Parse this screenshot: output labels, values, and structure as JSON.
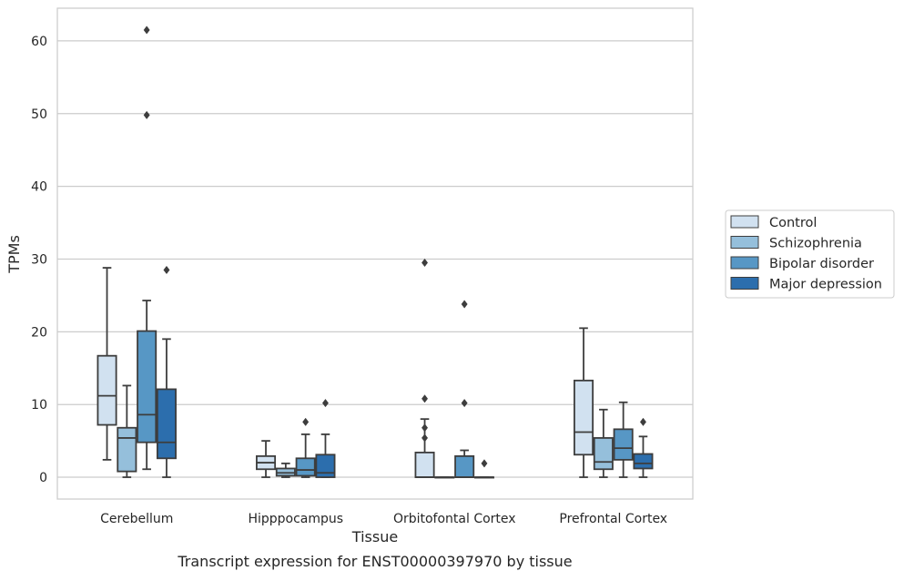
{
  "chart_data": {
    "type": "box",
    "title": "",
    "caption": "Transcript expression for ENST00000397970 by tissue",
    "xlabel": "Tissue",
    "ylabel": "TPMs",
    "ylim": [
      -3,
      64.5
    ],
    "yticks": [
      0,
      10,
      20,
      30,
      40,
      50,
      60
    ],
    "grid": "y",
    "legend_position": "right",
    "categories": [
      "Cerebellum",
      "Hipppocampus",
      "Orbitofontal Cortex",
      "Prefrontal Cortex"
    ],
    "series": [
      {
        "name": "Control",
        "color": "#d1e1f0",
        "boxes": [
          {
            "whisker_low": 2.4,
            "q1": 7.2,
            "median": 11.2,
            "q3": 16.7,
            "whisker_high": 28.8,
            "outliers": []
          },
          {
            "whisker_low": 0.0,
            "q1": 1.1,
            "median": 2.0,
            "q3": 2.9,
            "whisker_high": 5.0,
            "outliers": []
          },
          {
            "whisker_low": 0.0,
            "q1": 0.0,
            "median": 0.0,
            "q3": 3.4,
            "whisker_high": 8.0,
            "outliers": [
              29.5,
              10.8,
              6.8,
              5.4
            ]
          },
          {
            "whisker_low": 0.0,
            "q1": 3.1,
            "median": 6.2,
            "q3": 13.3,
            "whisker_high": 20.5,
            "outliers": []
          }
        ]
      },
      {
        "name": "Schizophrenia",
        "color": "#95bfdb",
        "boxes": [
          {
            "whisker_low": 0.0,
            "q1": 0.8,
            "median": 5.4,
            "q3": 6.8,
            "whisker_high": 12.6,
            "outliers": []
          },
          {
            "whisker_low": 0.0,
            "q1": 0.2,
            "median": 0.6,
            "q3": 1.2,
            "whisker_high": 1.9,
            "outliers": []
          },
          {
            "whisker_low": 0.0,
            "q1": 0.0,
            "median": 0.0,
            "q3": 0.0,
            "whisker_high": 0.0,
            "outliers": []
          },
          {
            "whisker_low": 0.0,
            "q1": 1.1,
            "median": 2.1,
            "q3": 5.4,
            "whisker_high": 9.3,
            "outliers": []
          }
        ]
      },
      {
        "name": "Bipolar disorder",
        "color": "#5797c5",
        "boxes": [
          {
            "whisker_low": 1.1,
            "q1": 4.8,
            "median": 8.6,
            "q3": 20.1,
            "whisker_high": 24.3,
            "outliers": [
              61.5,
              49.8
            ]
          },
          {
            "whisker_low": 0.0,
            "q1": 0.2,
            "median": 1.0,
            "q3": 2.6,
            "whisker_high": 5.9,
            "outliers": [
              7.6
            ]
          },
          {
            "whisker_low": 0.0,
            "q1": 0.0,
            "median": 0.0,
            "q3": 2.9,
            "whisker_high": 3.7,
            "outliers": [
              23.8,
              10.2
            ]
          },
          {
            "whisker_low": 0.0,
            "q1": 2.4,
            "median": 4.0,
            "q3": 6.6,
            "whisker_high": 10.3,
            "outliers": []
          }
        ]
      },
      {
        "name": "Major depression",
        "color": "#2c6ead",
        "boxes": [
          {
            "whisker_low": 0.0,
            "q1": 2.6,
            "median": 4.8,
            "q3": 12.1,
            "whisker_high": 19.0,
            "outliers": [
              28.5
            ]
          },
          {
            "whisker_low": 0.0,
            "q1": 0.0,
            "median": 0.6,
            "q3": 3.1,
            "whisker_high": 5.9,
            "outliers": [
              10.2
            ]
          },
          {
            "whisker_low": 0.0,
            "q1": 0.0,
            "median": 0.0,
            "q3": 0.0,
            "whisker_high": 0.0,
            "outliers": [
              1.9
            ]
          },
          {
            "whisker_low": 0.0,
            "q1": 1.2,
            "median": 1.9,
            "q3": 3.2,
            "whisker_high": 5.6,
            "outliers": [
              7.6
            ]
          }
        ]
      }
    ]
  }
}
